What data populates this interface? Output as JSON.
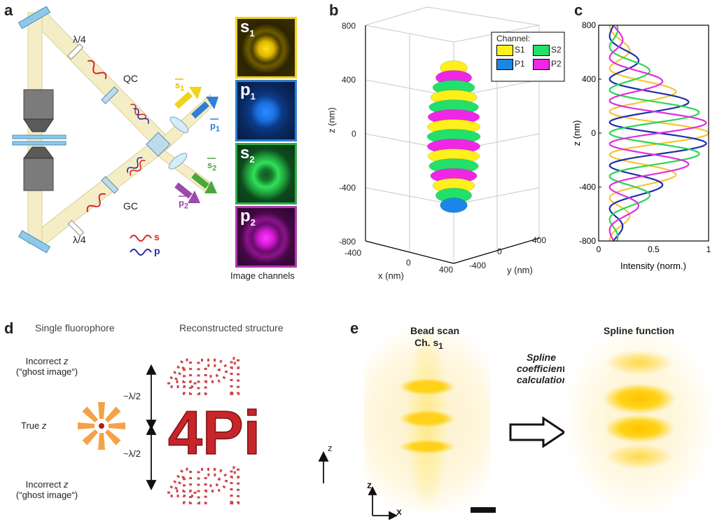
{
  "panels": {
    "a": "a",
    "b": "b",
    "c": "c",
    "d": "d",
    "e": "e"
  },
  "panel_a": {
    "lambda4_top": "λ/4",
    "lambda4_bottom": "λ/4",
    "qc": "QC",
    "gc": "GC",
    "s_legend": "s",
    "p_legend": "p",
    "channels": [
      {
        "name": "s",
        "sub": "1",
        "color": "#f2d21a"
      },
      {
        "name": "p",
        "sub": "1",
        "color": "#2f7fd6"
      },
      {
        "name": "s",
        "sub": "2",
        "color": "#2fae4a"
      },
      {
        "name": "p",
        "sub": "2",
        "color": "#b03ab0"
      }
    ],
    "caption": "Image channels",
    "beam_labels": [
      {
        "name": "s",
        "sub": "1"
      },
      {
        "name": "p",
        "sub": "1"
      },
      {
        "name": "s",
        "sub": "2"
      },
      {
        "name": "p",
        "sub": "2"
      }
    ]
  },
  "panel_b": {
    "zlabel": "z (nm)",
    "xlabel": "x (nm)",
    "ylabel": "y (nm)",
    "zticks": [
      "800",
      "400",
      "0",
      "-400",
      "-800"
    ],
    "xticks": [
      "-400",
      "0",
      "400"
    ],
    "yticks": [
      "400",
      "0",
      "-400"
    ],
    "legend_title": "Channel:",
    "legend": [
      {
        "name": "S1",
        "color": "#ffef1a"
      },
      {
        "name": "S2",
        "color": "#22e06a"
      },
      {
        "name": "P1",
        "color": "#1c86e6"
      },
      {
        "name": "P2",
        "color": "#f026e6"
      }
    ]
  },
  "panel_d": {
    "col1": "Single fluorophore",
    "col2": "Reconstructed structure",
    "incorrect_z": "Incorrect",
    "z_italic": "z",
    "ghost": "(“ghost image“)",
    "true_z": "True",
    "lambda_half": "~λ/2",
    "text_shown": "4Pi",
    "axis_z": "z"
  },
  "panel_e": {
    "bead_title": "Bead scan",
    "bead_channel": "Ch. s",
    "bead_sub": "1",
    "arrow_text_1": "Spline",
    "arrow_text_2": "coefficients",
    "arrow_text_3": "calculation",
    "spline_title": "Spline function",
    "axis_z": "z",
    "axis_x": "x"
  },
  "chart_data": {
    "type": "line",
    "xlabel": "Intensity (norm.)",
    "ylabel": "z (nm)",
    "xlim": [
      0,
      1
    ],
    "ylim": [
      -800,
      800
    ],
    "xticks": [
      "0",
      "0.5",
      "1"
    ],
    "yticks": [
      "800",
      "400",
      "0",
      "-400",
      "-800"
    ],
    "envelope_sigma_nm": 350,
    "period_nm": 320,
    "offset": 0.1,
    "series": [
      {
        "name": "S1",
        "color": "#f6c534",
        "phase_deg": 0
      },
      {
        "name": "P1",
        "color": "#1f2fa8",
        "phase_deg": 90
      },
      {
        "name": "S2",
        "color": "#2bd653",
        "phase_deg": 180
      },
      {
        "name": "P2",
        "color": "#e12ee0",
        "phase_deg": 270
      }
    ]
  }
}
